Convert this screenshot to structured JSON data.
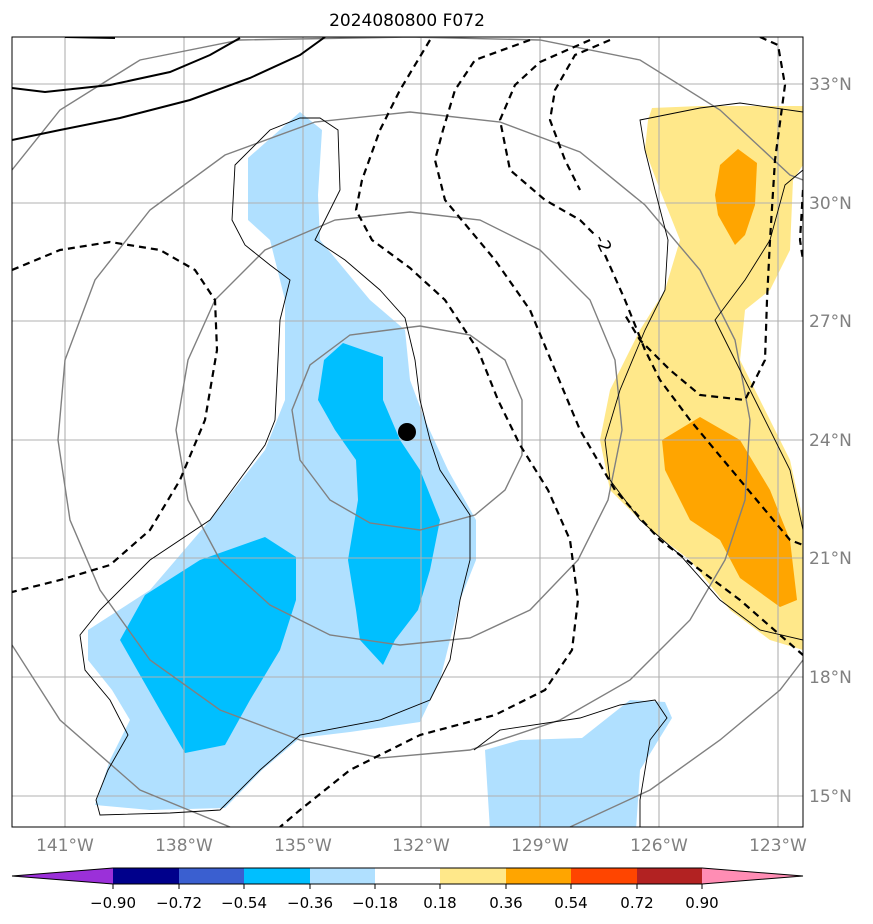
{
  "title": "2024080800 F072",
  "map": {
    "lon_labels": [
      "141°W",
      "138°W",
      "135°W",
      "132°W",
      "129°W",
      "126°W",
      "123°W"
    ],
    "lat_labels": [
      "15°N",
      "18°N",
      "21°N",
      "24°N",
      "27°N",
      "30°N",
      "33°N"
    ],
    "contour_label": "-2",
    "storm_center_lon": -132.3,
    "storm_center_lat": 24.2
  },
  "colorbar": {
    "tick_labels": [
      "−0.90",
      "−0.72",
      "−0.54",
      "−0.36",
      "−0.18",
      "0.18",
      "0.36",
      "0.54",
      "0.72",
      "0.90"
    ],
    "colors": {
      "under": "#9b30d9",
      "c1": "#00008b",
      "c2": "#3a5fd0",
      "c3": "#00bfff",
      "c4": "#b0e0ff",
      "c5": "#ffffff",
      "c6": "#ffe88a",
      "c7": "#ffa500",
      "c8": "#ff4500",
      "c9": "#b22222",
      "over": "#ff8db4"
    }
  }
}
